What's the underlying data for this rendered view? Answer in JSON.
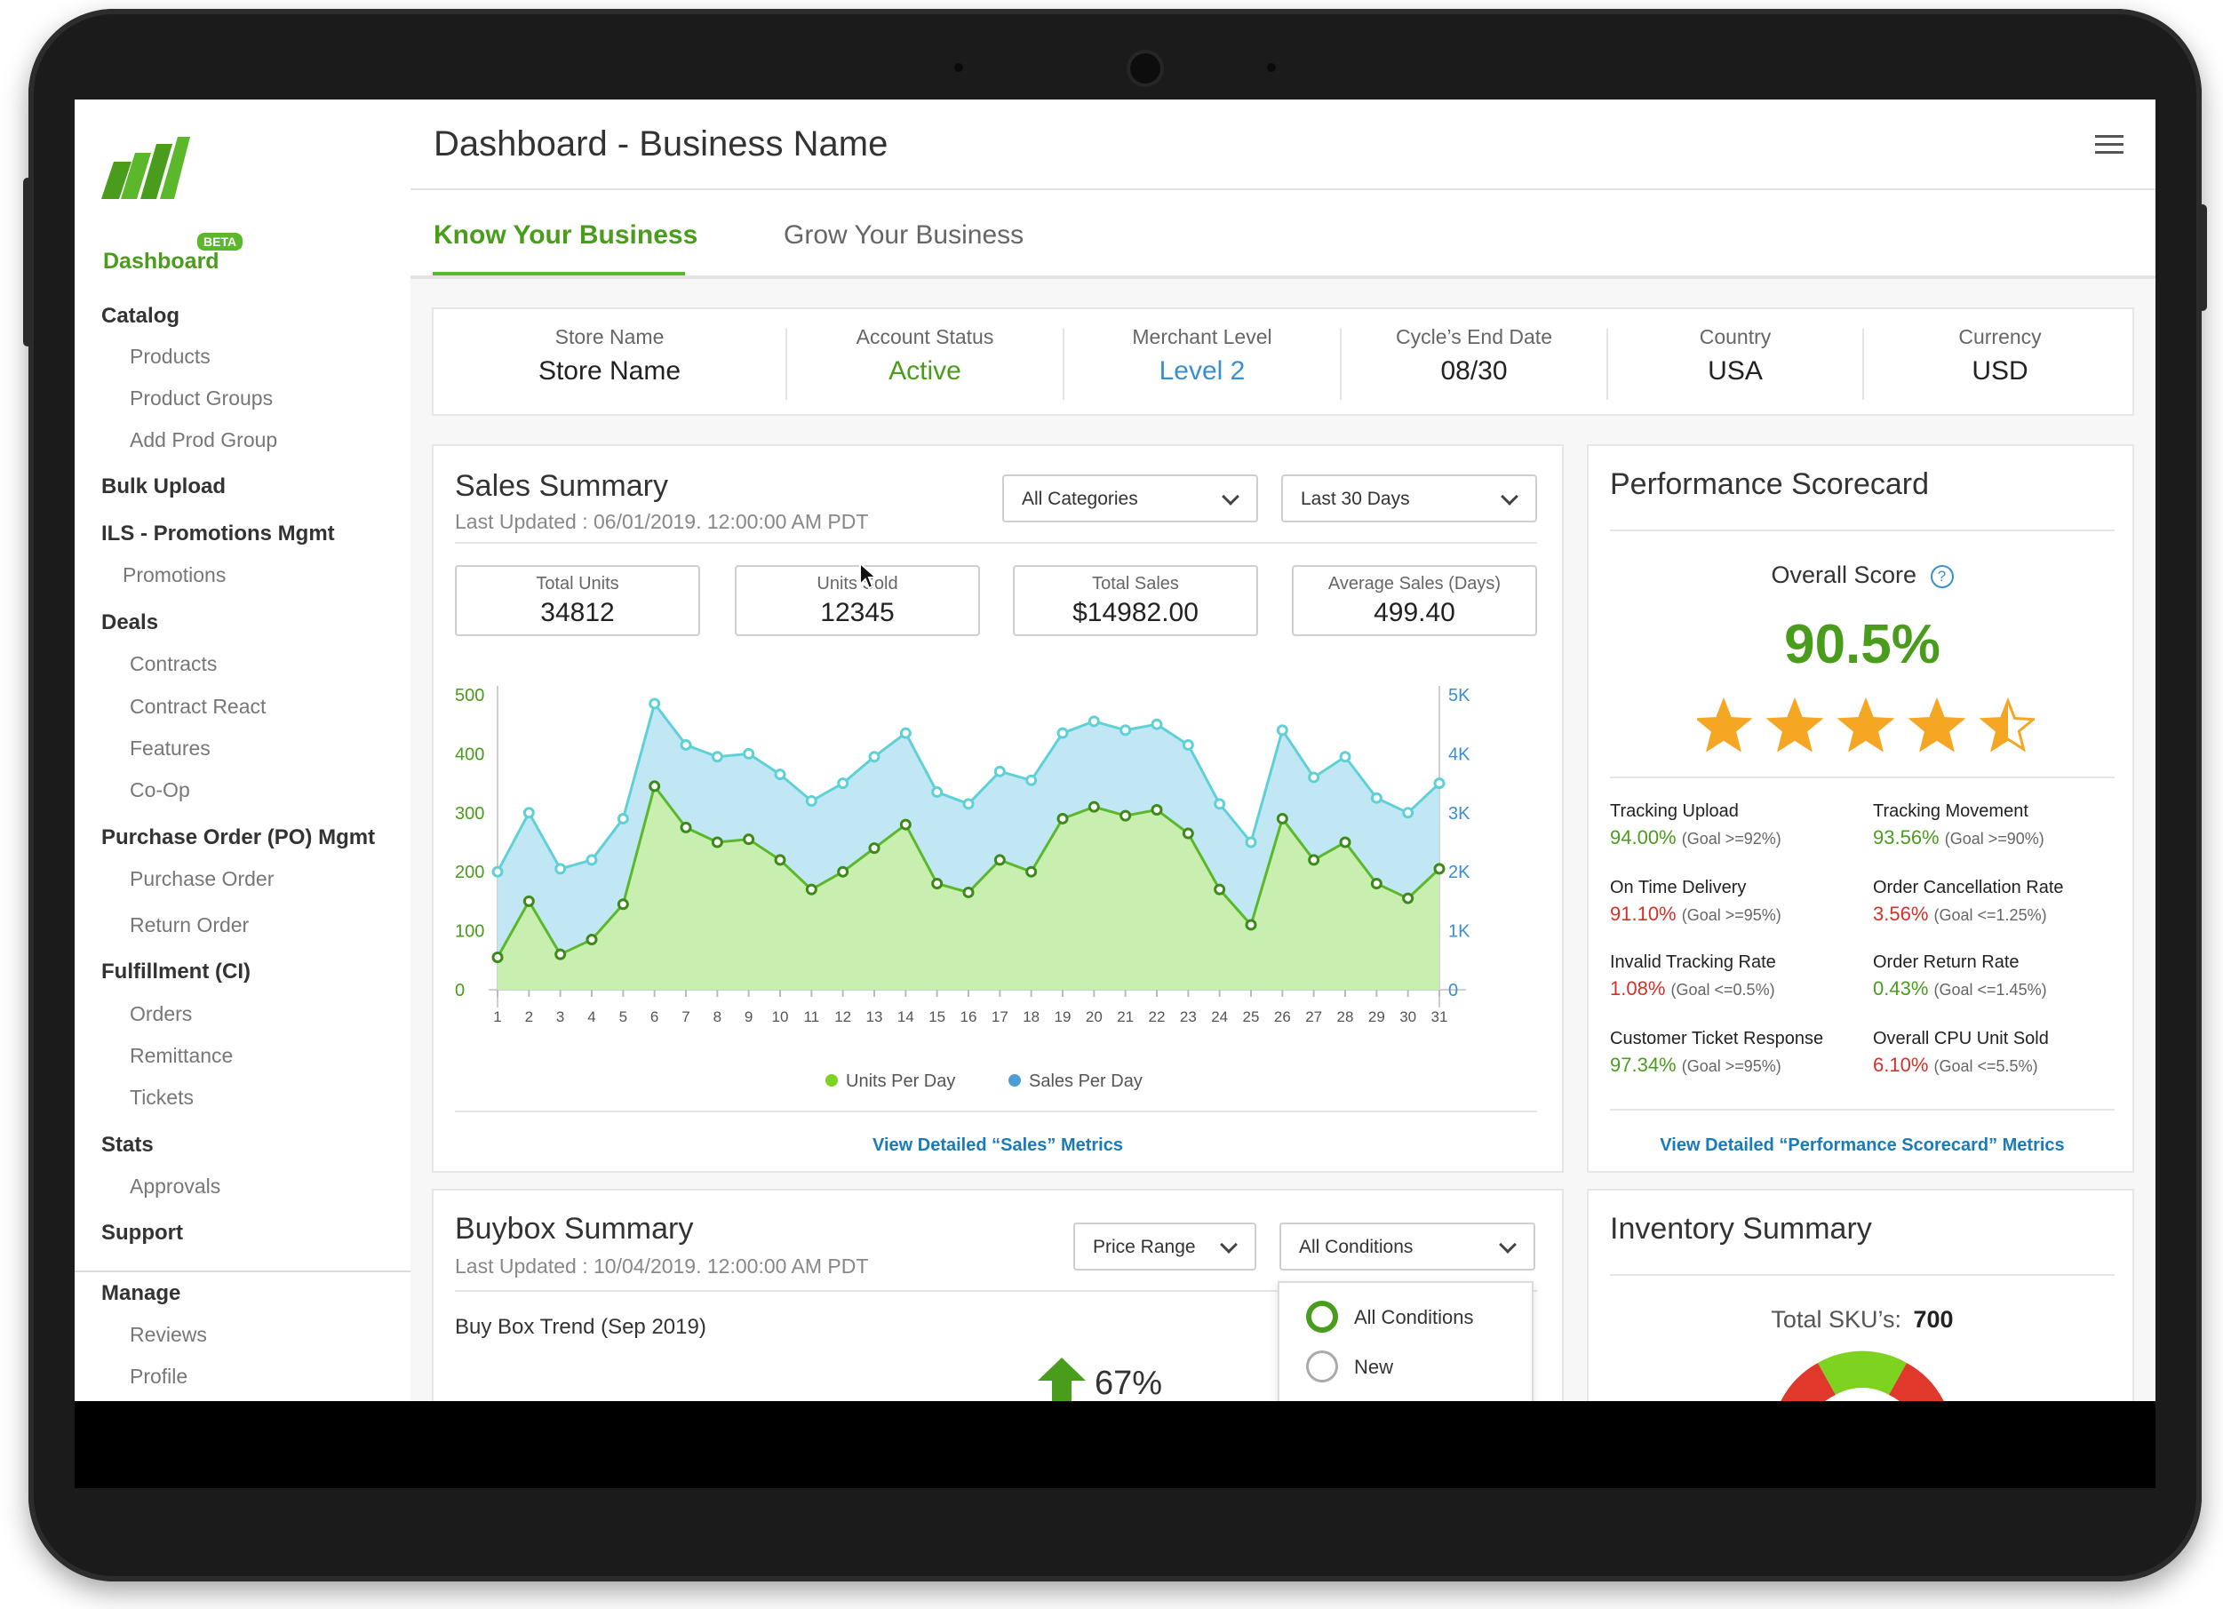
{
  "header": {
    "title": "Dashboard - Business Name"
  },
  "sidebar": {
    "dashboard_label": "Dashboard",
    "beta_label": "BETA",
    "items": [
      {
        "label": "Catalog",
        "kind": "section"
      },
      {
        "label": "Products",
        "kind": "sub"
      },
      {
        "label": "Product Groups",
        "kind": "sub"
      },
      {
        "label": "Add Prod Group",
        "kind": "sub"
      },
      {
        "label": "Bulk Upload",
        "kind": "section"
      },
      {
        "label": "ILS - Promotions Mgmt",
        "kind": "section"
      },
      {
        "label": "Promotions",
        "kind": "sub"
      },
      {
        "label": "Deals",
        "kind": "section"
      },
      {
        "label": "Contracts",
        "kind": "sub"
      },
      {
        "label": "Contract React",
        "kind": "sub"
      },
      {
        "label": "Features",
        "kind": "sub"
      },
      {
        "label": "Co-Op",
        "kind": "sub"
      },
      {
        "label": "Purchase Order (PO) Mgmt",
        "kind": "section"
      },
      {
        "label": "Purchase Order",
        "kind": "sub"
      },
      {
        "label": "Return Order",
        "kind": "sub"
      },
      {
        "label": "Fulfillment (CI)",
        "kind": "section"
      },
      {
        "label": "Orders",
        "kind": "sub"
      },
      {
        "label": "Remittance",
        "kind": "sub"
      },
      {
        "label": "Tickets",
        "kind": "sub"
      },
      {
        "label": "Stats",
        "kind": "section"
      },
      {
        "label": "Approvals",
        "kind": "sub"
      },
      {
        "label": "Support",
        "kind": "section"
      },
      {
        "label": "Manage",
        "kind": "section"
      },
      {
        "label": "Reviews",
        "kind": "sub"
      },
      {
        "label": "Profile",
        "kind": "sub"
      }
    ]
  },
  "tabs": [
    {
      "label": "Know Your Business",
      "active": true
    },
    {
      "label": "Grow Your Business",
      "active": false
    }
  ],
  "account_info": [
    {
      "label": "Store Name",
      "value": "Store Name",
      "color": "#222222"
    },
    {
      "label": "Account Status",
      "value": "Active",
      "color": "#4a9d1c"
    },
    {
      "label": "Merchant Level",
      "value": "Level 2",
      "color": "#3a8fd1"
    },
    {
      "label": "Cycle’s End Date",
      "value": "08/30",
      "color": "#222222"
    },
    {
      "label": "Country",
      "value": "USA",
      "color": "#222222"
    },
    {
      "label": "Currency",
      "value": "USD",
      "color": "#222222"
    }
  ],
  "sales_summary": {
    "title": "Sales Summary",
    "last_updated": "Last Updated : 06/01/2019.  12:00:00 AM PDT",
    "category_filter": "All Categories",
    "date_filter": "Last 30 Days",
    "stats": [
      {
        "label": "Total Units",
        "value": "34812"
      },
      {
        "label": "Units Sold",
        "value": "12345"
      },
      {
        "label": "Total Sales",
        "value": "$14982.00"
      },
      {
        "label": "Average Sales (Days)",
        "value": "499.40"
      }
    ],
    "link": "View Detailed “Sales” Metrics"
  },
  "chart_data": {
    "type": "area",
    "x": [
      1,
      2,
      3,
      4,
      5,
      6,
      7,
      8,
      9,
      10,
      11,
      12,
      13,
      14,
      15,
      16,
      17,
      18,
      19,
      20,
      21,
      22,
      23,
      24,
      25,
      26,
      27,
      28,
      29,
      30,
      31
    ],
    "y_left_ticks": [
      "0",
      "100",
      "200",
      "300",
      "400",
      "500"
    ],
    "y_right_ticks": [
      "0",
      "1K",
      "2K",
      "3K",
      "4K",
      "5K"
    ],
    "ylim_left": [
      0,
      500
    ],
    "ylim_right": [
      0,
      5000
    ],
    "series": [
      {
        "name": "Units Per Day",
        "axis": "left",
        "color": "#7ed321",
        "values": [
          55,
          150,
          60,
          85,
          145,
          345,
          275,
          250,
          255,
          220,
          170,
          200,
          240,
          280,
          180,
          165,
          220,
          200,
          290,
          310,
          295,
          305,
          265,
          170,
          110,
          290,
          220,
          250,
          180,
          155,
          205
        ]
      },
      {
        "name": "Sales Per Day",
        "axis": "right",
        "color": "#4fc3e8",
        "values": [
          2000,
          3000,
          2050,
          2200,
          2900,
          4850,
          4150,
          3950,
          4000,
          3650,
          3200,
          3500,
          3950,
          4350,
          3350,
          3150,
          3700,
          3550,
          4350,
          4550,
          4400,
          4500,
          4150,
          3150,
          2500,
          4400,
          3600,
          3950,
          3250,
          3000,
          3500
        ]
      }
    ],
    "legend": "bottom-center",
    "grid": false
  },
  "performance": {
    "title": "Performance Scorecard",
    "overall_label": "Overall Score",
    "score": "90.5%",
    "stars": 4.5,
    "star_color": "#f5a623",
    "metrics": [
      {
        "name": "Tracking Upload",
        "value": "94.00%",
        "goal": "(Goal >=92%)",
        "status": "good"
      },
      {
        "name": "Tracking Movement",
        "value": "93.56%",
        "goal": "(Goal >=90%)",
        "status": "good"
      },
      {
        "name": "On Time Delivery",
        "value": "91.10%",
        "goal": "(Goal >=95%)",
        "status": "bad"
      },
      {
        "name": "Order Cancellation Rate",
        "value": "3.56%",
        "goal": "(Goal <=1.25%)",
        "status": "bad"
      },
      {
        "name": "Invalid Tracking Rate",
        "value": "1.08%",
        "goal": "(Goal <=0.5%)",
        "status": "bad"
      },
      {
        "name": "Order Return Rate",
        "value": "0.43%",
        "goal": "(Goal <=1.45%)",
        "status": "good"
      },
      {
        "name": "Customer Ticket Response",
        "value": "97.34%",
        "goal": "(Goal >=95%)",
        "status": "good"
      },
      {
        "name": "Overall CPU Unit Sold",
        "value": "6.10%",
        "goal": "(Goal <=5.5%)",
        "status": "bad"
      }
    ],
    "link": "View Detailed “Performance Scorecard” Metrics"
  },
  "buybox": {
    "title": "Buybox Summary",
    "last_updated": "Last Updated : 10/04/2019.  12:00:00 AM PDT",
    "price_filter": "Price Range",
    "conditions_filter": "All Conditions",
    "trend_title": "Buy Box Trend (Sep 2019)",
    "trend_value": "67%",
    "condition_options": [
      {
        "label": "All Conditions",
        "checked": true
      },
      {
        "label": "New",
        "checked": false
      }
    ]
  },
  "inventory": {
    "title": "Inventory Summary",
    "total_label": "Total SKU’s:",
    "total_value": "700"
  }
}
